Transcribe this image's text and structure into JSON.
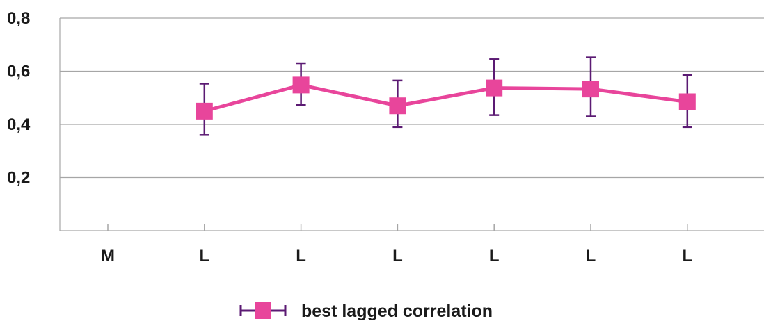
{
  "chart_data": {
    "type": "line",
    "categories": [
      "M",
      "L",
      "L",
      "L",
      "L",
      "L",
      "L"
    ],
    "series": [
      {
        "name": "best lagged correlation",
        "values": [
          null,
          0.45,
          0.548,
          0.47,
          0.537,
          0.533,
          0.485
        ],
        "error_low": [
          null,
          0.36,
          0.473,
          0.39,
          0.435,
          0.43,
          0.39
        ],
        "error_high": [
          null,
          0.553,
          0.63,
          0.565,
          0.645,
          0.652,
          0.585
        ],
        "line_color": "#e8459b",
        "marker": "square",
        "marker_color": "#e8459b",
        "error_bar_color": "#5b1a73"
      }
    ],
    "ylim": [
      0,
      0.8
    ],
    "yticks": [
      0.2,
      0.4,
      0.6,
      0.8
    ],
    "ytick_labels": [
      "0,2",
      "0,4",
      "0,6",
      "0,8"
    ],
    "grid": true,
    "legend_position": "bottom-center",
    "title": "",
    "xlabel": "",
    "ylabel": ""
  },
  "legend": {
    "label": "best lagged correlation"
  }
}
